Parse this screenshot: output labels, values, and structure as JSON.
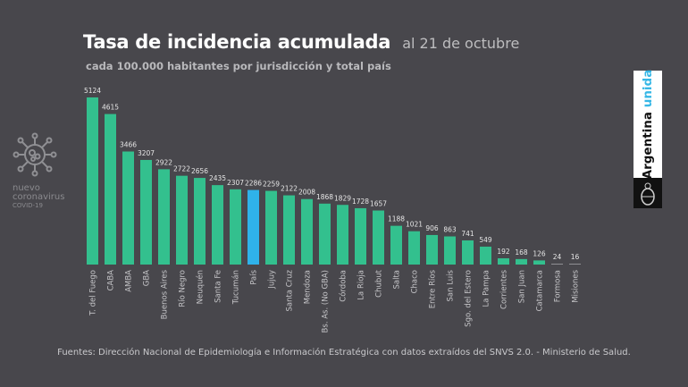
{
  "header": {
    "title": "Tasa de incidencia acumulada",
    "title_date": "al 21 de octubre",
    "subtitle": "cada 100.000 habitantes por jurisdicción y total país"
  },
  "left_logo": {
    "icon": "coronavirus-icon",
    "line1": "nuevo",
    "line2": "coronavirus",
    "line3": "COVID-19"
  },
  "brand": {
    "word1": "Argentina",
    "word2": "unida",
    "emblem_icon": "national-coat-of-arms-icon"
  },
  "footer": {
    "source": "Fuentes: Dirección Nacional de Epidemiología e Información Estratégica con datos extraídos del SNVS 2.0. - Ministerio de Salud."
  },
  "colors": {
    "background": "#48474c",
    "bar": "#33c08e",
    "highlight_bar": "#2fb2ea",
    "near_zero_bar": "#8f8f93",
    "label": "#e6e6e6"
  },
  "chart_data": {
    "type": "bar",
    "title": "Tasa de incidencia acumulada al 21 de octubre",
    "subtitle": "cada 100.000 habitantes por jurisdicción y total país",
    "xlabel": "",
    "ylabel": "",
    "ylim": [
      0,
      5124
    ],
    "grid": false,
    "legend": "none",
    "highlight_category": "País",
    "categories": [
      "T. del Fuego",
      "CABA",
      "AMBA",
      "GBA",
      "Buenos Aires",
      "Río Negro",
      "Neuquén",
      "Santa Fe",
      "Tucumán",
      "País",
      "Jujuy",
      "Santa Cruz",
      "Mendoza",
      "Bs. As. (No GBA)",
      "Córdoba",
      "La Rioja",
      "Chubut",
      "Salta",
      "Chaco",
      "Entre Ríos",
      "San Luis",
      "Sgo. del Estero",
      "La Pampa",
      "Corrientes",
      "San Juan",
      "Catamarca",
      "Formosa",
      "Misiones"
    ],
    "values": [
      5124,
      4615,
      3466,
      3207,
      2922,
      2722,
      2656,
      2435,
      2307,
      2286,
      2259,
      2122,
      2008,
      1868,
      1829,
      1728,
      1657,
      1188,
      1021,
      906,
      863,
      741,
      549,
      192,
      168,
      126,
      24,
      16
    ]
  }
}
